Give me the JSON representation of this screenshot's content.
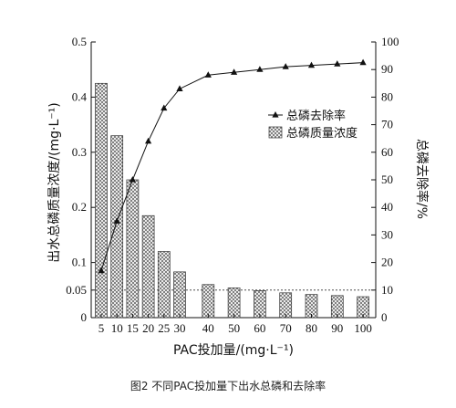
{
  "caption": "图2   不同PAC投加量下出水总磷和去除率",
  "chart_data": {
    "type": "bar+line",
    "x": [
      5,
      10,
      15,
      20,
      25,
      30,
      40,
      50,
      60,
      70,
      80,
      90,
      100
    ],
    "x_tick_labels": [
      "5",
      "10",
      "15",
      "20",
      "25",
      "30",
      "40",
      "50",
      "60",
      "70",
      "80",
      "90",
      "100"
    ],
    "xlabel": "PAC投加量/(mg·L⁻¹)",
    "ylabel_left": "出水总磷质量浓度/(mg·L⁻¹)",
    "ylabel_right": "总磷去除率/%",
    "ylim_left": [
      0,
      0.5
    ],
    "ylim_right": [
      0,
      100
    ],
    "yticks_left": [
      "0",
      "0.05",
      "0.1",
      "0.2",
      "0.3",
      "0.4",
      "0.5"
    ],
    "yticks_left_values": [
      0,
      0.05,
      0.1,
      0.2,
      0.3,
      0.4,
      0.5
    ],
    "yticks_right": [
      "0",
      "10",
      "20",
      "30",
      "40",
      "50",
      "60",
      "70",
      "80",
      "90",
      "100"
    ],
    "reference_line": {
      "axis": "left",
      "value": 0.05
    },
    "series": [
      {
        "name": "总磷质量浓度",
        "kind": "bar",
        "axis": "left",
        "values": [
          0.425,
          0.33,
          0.25,
          0.185,
          0.12,
          0.083,
          0.06,
          0.054,
          0.049,
          0.045,
          0.042,
          0.04,
          0.038
        ]
      },
      {
        "name": "总磷去除率",
        "kind": "line",
        "axis": "right",
        "marker": "triangle",
        "values": [
          17,
          35,
          50,
          64,
          76,
          83,
          88,
          89,
          90,
          91,
          91.5,
          92,
          92.5
        ]
      }
    ],
    "legend": {
      "placement": "top-right",
      "entries": [
        "总磷去除率",
        "总磷质量浓度"
      ]
    },
    "grid": false
  }
}
